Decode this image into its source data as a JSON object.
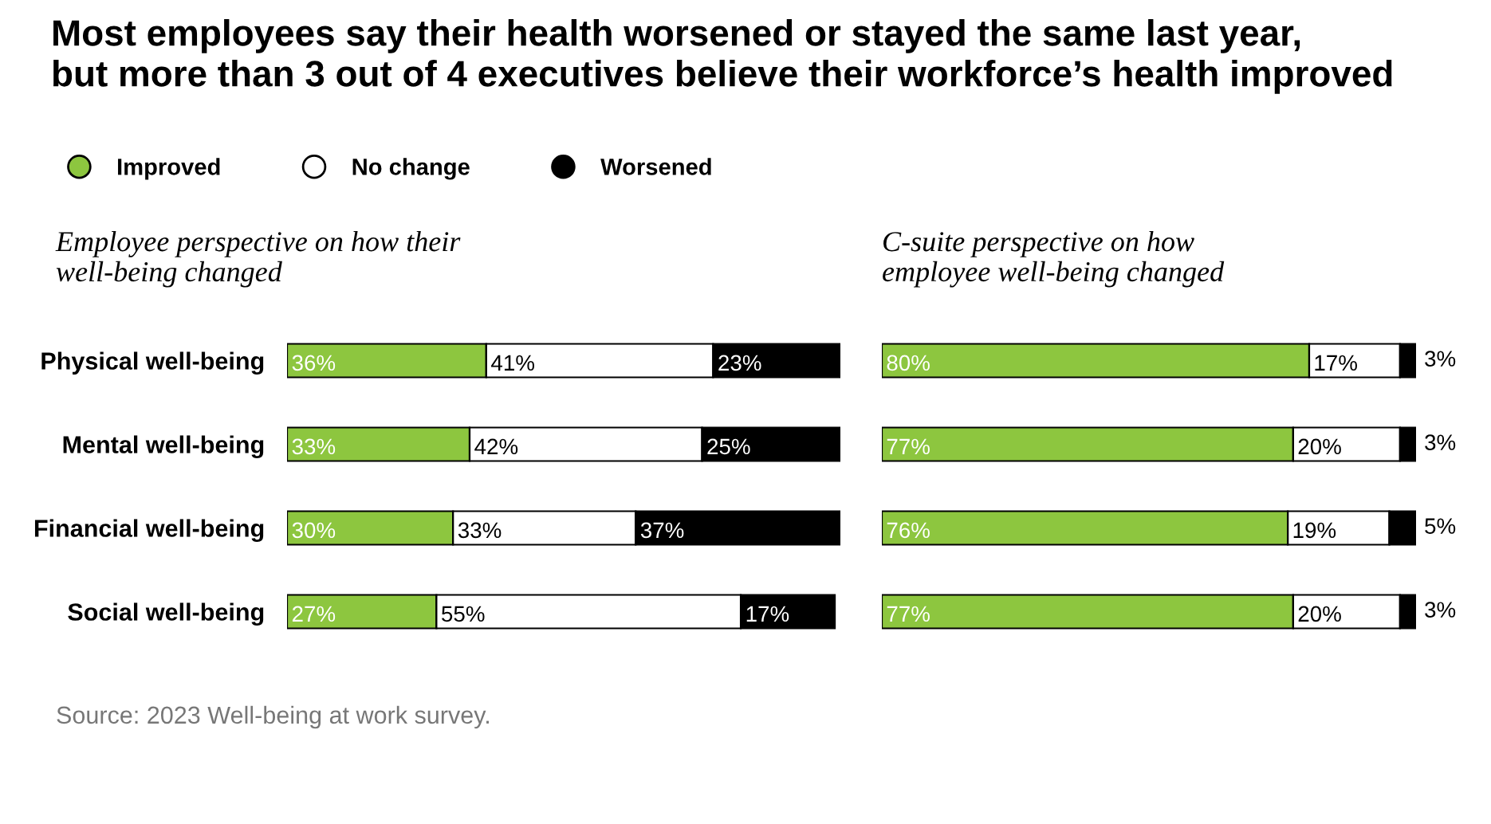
{
  "chart_data": [
    {
      "type": "bar",
      "orientation": "horizontal",
      "stacked": true,
      "data_labels": true,
      "legend": "top left",
      "title": "Most employees say their health worsened or stayed the same last year,\nbut more than 3 out of 4 executives believe their workforce’s health improved",
      "subtitle": "Employee perspective on how their\nwell-being changed",
      "annotations": [
        "Source: 2023 Well-being at work survey."
      ],
      "categories": [
        "Physical well-being",
        "Mental well-being",
        "Financial well-being",
        "Social well-being"
      ],
      "series": [
        {
          "name": "Improved",
          "color": "#8dc63f",
          "values": [
            36,
            33,
            30,
            27
          ],
          "value_labels": [
            "36%",
            "33%",
            "30%",
            "27%"
          ]
        },
        {
          "name": "No change",
          "color": "#ffffff",
          "values": [
            41,
            42,
            33,
            55
          ],
          "value_labels": [
            "41%",
            "42%",
            "33%",
            "55%"
          ]
        },
        {
          "name": "Worsened",
          "color": "#000000",
          "values": [
            23,
            25,
            37,
            17
          ],
          "value_labels": [
            "23%",
            "25%",
            "37%",
            "17%"
          ]
        }
      ]
    },
    {
      "type": "bar",
      "orientation": "horizontal",
      "stacked": true,
      "data_labels": true,
      "title": "C-suite perspective on how\nemployee well-being changed",
      "categories": [
        null,
        null,
        null,
        null
      ],
      "series": [
        {
          "color": "#8dc63f",
          "values": [
            80,
            77,
            76,
            77
          ],
          "value_labels": [
            "80%",
            "77%",
            "76%",
            "77%"
          ]
        },
        {
          "color": "#ffffff",
          "values": [
            17,
            20,
            19,
            20
          ],
          "value_labels": [
            "17%",
            "20%",
            "19%",
            "20%"
          ]
        },
        {
          "color": "#000000",
          "values": [
            3,
            3,
            5,
            3
          ],
          "value_labels": [
            "3%",
            "3%",
            "5%",
            "3%"
          ]
        }
      ]
    }
  ]
}
